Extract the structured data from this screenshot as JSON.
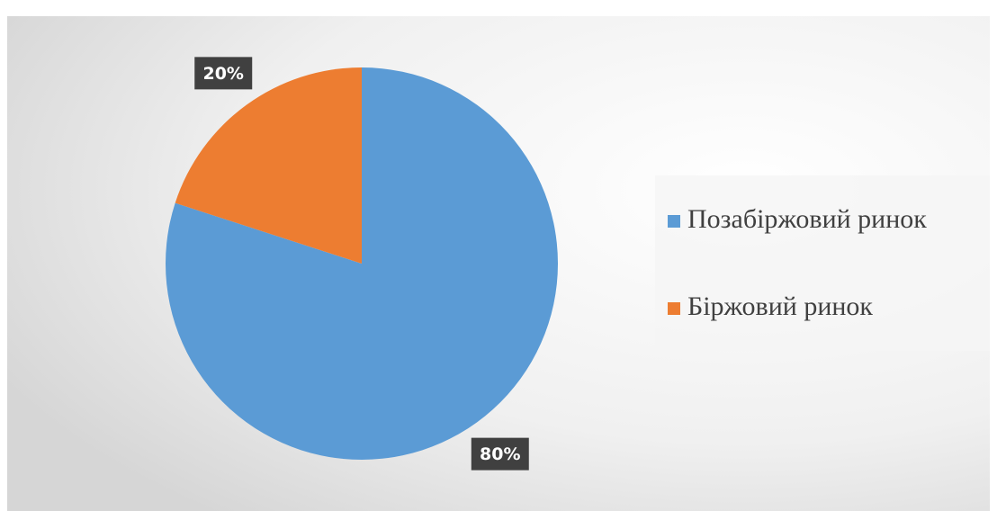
{
  "chart_data": {
    "type": "pie",
    "categories": [
      "Позабіржовий ринок",
      "Біржовий ринок"
    ],
    "values": [
      80,
      20
    ],
    "value_labels": [
      "80%",
      "20%"
    ],
    "colors": [
      "#5b9bd5",
      "#ed7d31"
    ],
    "legend": "right"
  }
}
